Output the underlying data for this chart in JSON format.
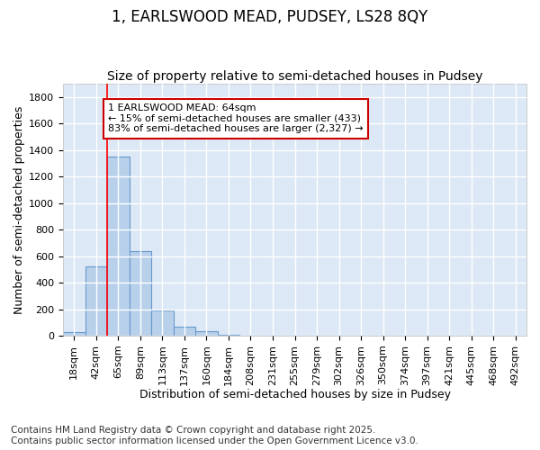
{
  "title1": "1, EARLSWOOD MEAD, PUDSEY, LS28 8QY",
  "title2": "Size of property relative to semi-detached houses in Pudsey",
  "xlabel": "Distribution of semi-detached houses by size in Pudsey",
  "ylabel": "Number of semi-detached properties",
  "bin_labels": [
    "18sqm",
    "42sqm",
    "65sqm",
    "89sqm",
    "113sqm",
    "137sqm",
    "160sqm",
    "184sqm",
    "208sqm",
    "231sqm",
    "255sqm",
    "279sqm",
    "302sqm",
    "326sqm",
    "350sqm",
    "374sqm",
    "397sqm",
    "421sqm",
    "445sqm",
    "468sqm",
    "492sqm"
  ],
  "bin_values": [
    30,
    520,
    1350,
    640,
    190,
    70,
    35,
    5,
    2,
    0,
    0,
    0,
    0,
    0,
    0,
    0,
    0,
    0,
    0,
    0,
    0
  ],
  "bar_color": "#b8d0ea",
  "bar_edgecolor": "#6699cc",
  "bg_color": "#dce8f5",
  "grid_color": "#ffffff",
  "red_line_x": 1.5,
  "ylim": [
    0,
    1900
  ],
  "yticks": [
    0,
    200,
    400,
    600,
    800,
    1000,
    1200,
    1400,
    1600,
    1800
  ],
  "annotation_text": "1 EARLSWOOD MEAD: 64sqm\n← 15% of semi-detached houses are smaller (433)\n83% of semi-detached houses are larger (2,327) →",
  "annotation_box_color": "#ffffff",
  "annotation_box_edgecolor": "#cc0000",
  "fig_bg_color": "#ffffff",
  "footer1": "Contains HM Land Registry data © Crown copyright and database right 2025.",
  "footer2": "Contains public sector information licensed under the Open Government Licence v3.0.",
  "title_fontsize": 12,
  "subtitle_fontsize": 10,
  "label_fontsize": 9,
  "tick_fontsize": 8,
  "footer_fontsize": 7.5
}
